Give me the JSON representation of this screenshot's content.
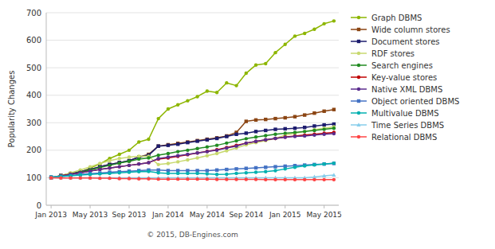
{
  "chart_data": {
    "type": "line",
    "ylabel": "Popularity Changes",
    "annotation": "© 2015, DB-Engines.com",
    "categories": [
      "Jan 2013",
      null,
      null,
      null,
      "May 2013",
      null,
      null,
      null,
      "Sep 2013",
      null,
      null,
      null,
      "Jan 2014",
      null,
      null,
      null,
      "May 2014",
      null,
      null,
      null,
      "Sep 2014",
      null,
      null,
      null,
      "Jan 2015",
      null,
      null,
      null,
      "May 2015",
      null
    ],
    "ylim": [
      0,
      700
    ],
    "yticks": [
      0,
      100,
      200,
      300,
      400,
      500,
      600,
      700
    ],
    "grid": true,
    "legend": "right",
    "series": [
      {
        "name": "Graph DBMS",
        "color": "#8db600",
        "marker": "circle",
        "values": [
          100,
          105,
          112,
          120,
          135,
          150,
          170,
          185,
          200,
          230,
          240,
          315,
          350,
          365,
          380,
          395,
          415,
          410,
          445,
          435,
          480,
          510,
          515,
          555,
          585,
          615,
          625,
          640,
          660,
          670
        ]
      },
      {
        "name": "Wide column stores",
        "color": "#8B4513",
        "marker": "square",
        "values": [
          100,
          108,
          115,
          122,
          130,
          140,
          148,
          155,
          162,
          175,
          185,
          215,
          220,
          225,
          230,
          235,
          240,
          245,
          252,
          265,
          305,
          310,
          312,
          315,
          318,
          322,
          328,
          335,
          342,
          348
        ]
      },
      {
        "name": "Document stores",
        "color": "#1c1c6e",
        "marker": "square",
        "values": [
          100,
          108,
          115,
          122,
          130,
          140,
          148,
          155,
          162,
          175,
          182,
          215,
          218,
          222,
          228,
          233,
          238,
          243,
          250,
          258,
          262,
          268,
          272,
          276,
          278,
          280,
          283,
          288,
          292,
          295
        ]
      },
      {
        "name": "RDF stores",
        "color": "#c8d96f",
        "marker": "circle",
        "values": [
          100,
          108,
          118,
          128,
          140,
          152,
          162,
          170,
          175,
          178,
          178,
          148,
          152,
          158,
          165,
          172,
          180,
          188,
          198,
          208,
          220,
          228,
          235,
          243,
          255,
          262,
          268,
          275,
          280,
          285
        ]
      },
      {
        "name": "Search engines",
        "color": "#228B22",
        "marker": "circle",
        "values": [
          100,
          107,
          113,
          120,
          128,
          137,
          145,
          153,
          160,
          168,
          172,
          182,
          188,
          195,
          200,
          206,
          212,
          218,
          226,
          234,
          242,
          248,
          253,
          258,
          262,
          265,
          268,
          272,
          276,
          280
        ]
      },
      {
        "name": "Key-value stores",
        "color": "#c00000",
        "marker": "circle",
        "values": [
          100,
          107,
          113,
          118,
          124,
          130,
          135,
          140,
          145,
          150,
          155,
          168,
          172,
          178,
          184,
          190,
          196,
          202,
          210,
          218,
          226,
          232,
          238,
          243,
          248,
          252,
          255,
          258,
          262,
          265
        ]
      },
      {
        "name": "Native XML DBMS",
        "color": "#5b2d8e",
        "marker": "circle",
        "values": [
          100,
          106,
          112,
          118,
          124,
          130,
          135,
          140,
          145,
          150,
          155,
          170,
          175,
          180,
          185,
          190,
          195,
          200,
          208,
          215,
          226,
          232,
          238,
          243,
          247,
          250,
          252,
          255,
          258,
          260
        ]
      },
      {
        "name": "Object oriented DBMS",
        "color": "#4472c4",
        "marker": "square",
        "values": [
          103,
          105,
          108,
          112,
          115,
          117,
          120,
          122,
          124,
          126,
          128,
          128,
          126,
          126,
          126,
          126,
          126,
          128,
          130,
          132,
          134,
          136,
          138,
          140,
          142,
          144,
          146,
          148,
          150,
          152
        ]
      },
      {
        "name": "Multivalue DBMS",
        "color": "#00b0b0",
        "marker": "circle",
        "values": [
          103,
          105,
          107,
          110,
          112,
          114,
          116,
          118,
          120,
          122,
          123,
          118,
          116,
          116,
          116,
          116,
          114,
          112,
          113,
          116,
          118,
          120,
          122,
          126,
          132,
          138,
          143,
          147,
          150,
          153
        ]
      },
      {
        "name": "Time Series DBMS",
        "color": "#87ceeb",
        "marker": "triangle",
        "values": [
          100,
          100,
          100,
          100,
          100,
          100,
          100,
          100,
          100,
          100,
          100,
          100,
          100,
          100,
          100,
          100,
          100,
          100,
          100,
          100,
          100,
          100,
          100,
          100,
          100,
          100,
          100,
          103,
          107,
          110
        ]
      },
      {
        "name": "Relational DBMS",
        "color": "#ff4444",
        "marker": "circle",
        "values": [
          100,
          99,
          99,
          99,
          99,
          98,
          98,
          97,
          97,
          96,
          96,
          95,
          95,
          95,
          95,
          95,
          95,
          94,
          94,
          94,
          94,
          94,
          93,
          93,
          93,
          93,
          93,
          93,
          93,
          93
        ]
      }
    ]
  }
}
